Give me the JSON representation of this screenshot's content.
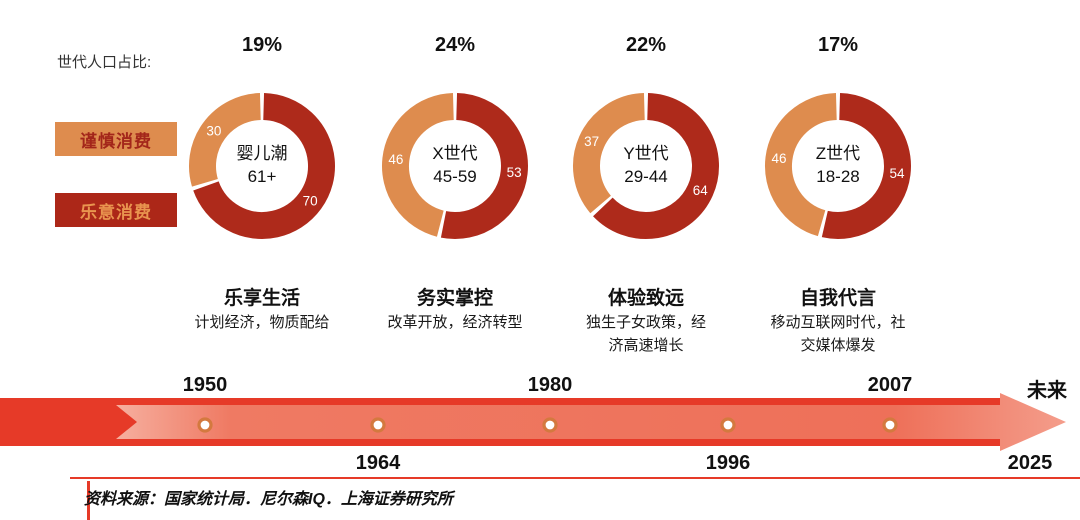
{
  "header": {
    "axis_label": "世代人口占比:"
  },
  "legend": {
    "cautious": {
      "label": "谨慎消费",
      "bg": "#DE8C4E",
      "text_color": "#A3261A"
    },
    "willing": {
      "label": "乐意消费",
      "bg": "#AC2718",
      "text_color": "#E9954F"
    }
  },
  "chart_data": {
    "type": "pie",
    "title": "世代人口占比",
    "legend_entries": [
      "谨慎消费",
      "乐意消费"
    ],
    "colors": {
      "cautious": "#DE8C4E",
      "willing": "#AE2A1B"
    },
    "generations": [
      {
        "population_share": "19%",
        "name": "婴儿潮",
        "age_range": "61+",
        "cautious_pct": 30,
        "willing_pct": 70,
        "trait": "乐享生活",
        "context": "计划经济，物质配给"
      },
      {
        "population_share": "24%",
        "name": "X世代",
        "age_range": "45-59",
        "cautious_pct": 46,
        "willing_pct": 53,
        "trait": "务实掌控",
        "context": "改革开放，经济转型"
      },
      {
        "population_share": "22%",
        "name": "Y世代",
        "age_range": "29-44",
        "cautious_pct": 37,
        "willing_pct": 64,
        "trait": "体验致远",
        "context": "独生子女政策，经济高速增长"
      },
      {
        "population_share": "17%",
        "name": "Z世代",
        "age_range": "18-28",
        "cautious_pct": 46,
        "willing_pct": 54,
        "trait": "自我代言",
        "context": "移动互联网时代，社交媒体爆发"
      }
    ]
  },
  "timeline": {
    "years_above": [
      "1950",
      "1980",
      "2007"
    ],
    "years_below": [
      "1964",
      "1996",
      "2025"
    ],
    "future": "未来",
    "band_color": "#E63A28"
  },
  "footer": {
    "source": "资料来源：国家统计局．尼尔森IQ．上海证券研究所"
  }
}
